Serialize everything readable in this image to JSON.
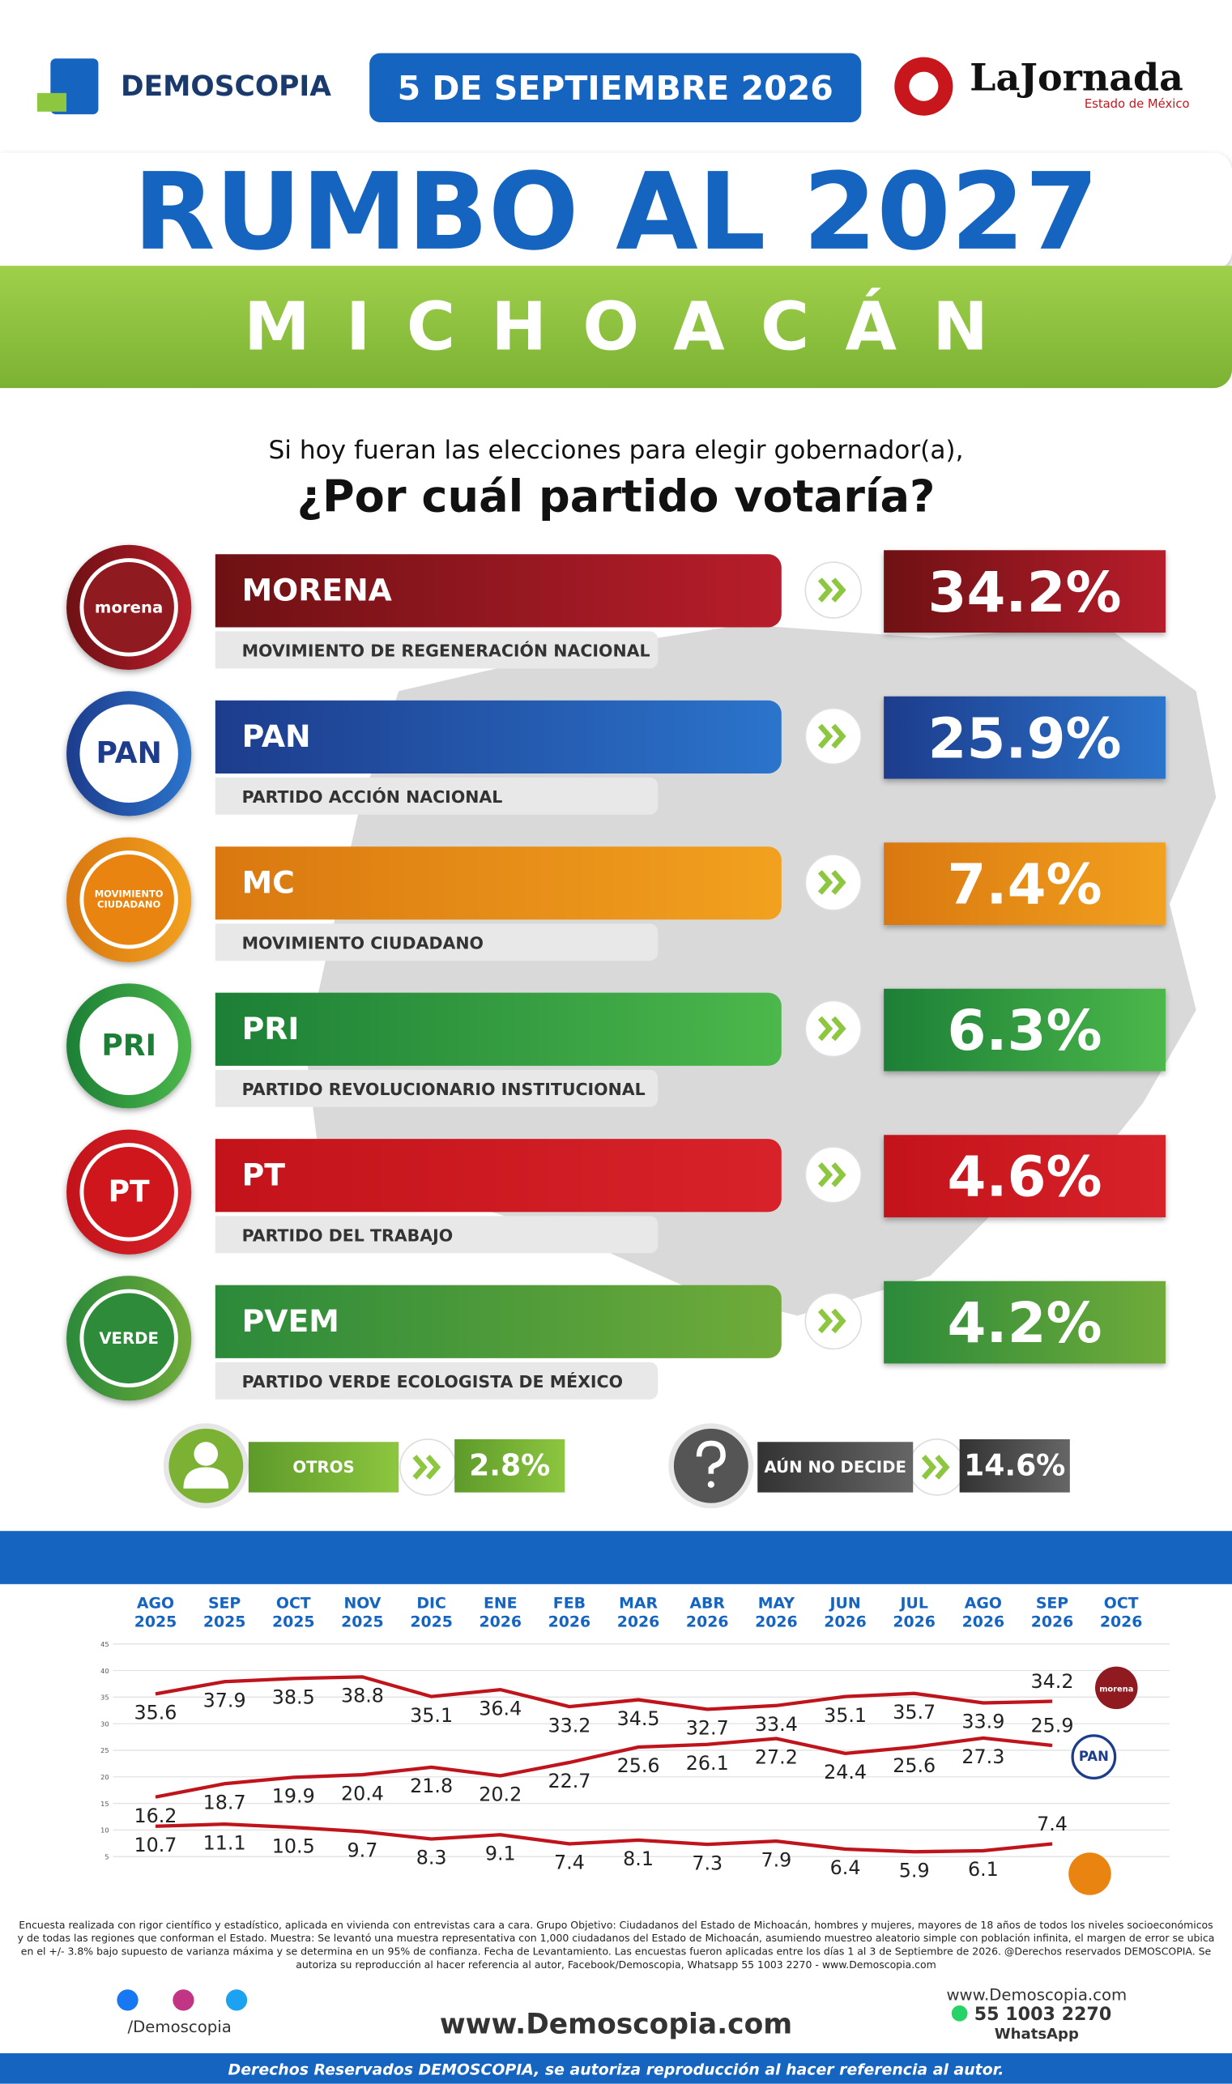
{
  "header": {
    "brand": "DEMOSCOPIA",
    "date": "5 DE SEPTIEMBRE 2026",
    "partner": "LaJornada",
    "partner_sub": "Estado de México",
    "title": "RUMBO AL 2027",
    "state": "MICHOACÁN"
  },
  "question": {
    "line1": "Si hoy fueran las elecciones para elegir gobernador(a),",
    "line2": "¿Por cuál partido votaría?"
  },
  "parties": [
    {
      "logo": "morena",
      "name": "MORENA",
      "full_name": "MOVIMIENTO DE REGENERACIÓN NACIONAL",
      "percent": "34.2%",
      "colors": [
        "#6e1114",
        "#b81d2b"
      ],
      "logo_color": "#8f1a1f"
    },
    {
      "logo": "PAN",
      "name": "PAN",
      "full_name": "PARTIDO ACCIÓN NACIONAL",
      "percent": "25.9%",
      "colors": [
        "#1d3c8c",
        "#2b74cc"
      ],
      "logo_color": "#ffffff"
    },
    {
      "logo": "MOVIMIENTO CIUDADANO",
      "name": "MC",
      "full_name": "MOVIMIENTO CIUDADANO",
      "percent": "7.4%",
      "colors": [
        "#d97810",
        "#f2a11f"
      ],
      "logo_color": "#e8840f"
    },
    {
      "logo": "PRI",
      "name": "PRI",
      "full_name": "PARTIDO REVOLUCIONARIO INSTITUCIONAL",
      "percent": "6.3%",
      "colors": [
        "#1c7f36",
        "#4cb84b"
      ],
      "logo_color": "#ffffff"
    },
    {
      "logo": "PT",
      "name": "PT",
      "full_name": "PARTIDO DEL TRABAJO",
      "percent": "4.6%",
      "colors": [
        "#c3131a",
        "#d8222a"
      ],
      "logo_color": "#d0161d"
    },
    {
      "logo": "VERDE",
      "name": "PVEM",
      "full_name": "PARTIDO VERDE ECOLOGISTA DE MÉXICO",
      "percent": "4.2%",
      "colors": [
        "#2b8a3a",
        "#70ab3a"
      ],
      "logo_color": "#2e8b3a"
    }
  ],
  "others": {
    "label": "OTROS",
    "percent": "2.8%"
  },
  "undecided": {
    "label": "AÚN NO DECIDE",
    "percent": "14.6%"
  },
  "chart_data": {
    "type": "line",
    "categories": [
      "AGO 2025",
      "SEP 2025",
      "OCT 2025",
      "NOV 2025",
      "DIC 2025",
      "ENE 2026",
      "FEB 2026",
      "MAR 2026",
      "ABR 2026",
      "MAY 2026",
      "JUN 2026",
      "JUL 2026",
      "AGO 2026",
      "SEP 2026",
      "OCT 2026"
    ],
    "series": [
      {
        "name": "morena",
        "color": "#c0141c",
        "values": [
          35.6,
          37.9,
          38.5,
          38.8,
          35.1,
          36.4,
          33.2,
          34.5,
          32.7,
          33.4,
          35.1,
          35.7,
          33.9,
          34.2,
          null
        ]
      },
      {
        "name": "PAN",
        "color": "#c0141c",
        "values": [
          16.2,
          18.7,
          19.9,
          20.4,
          21.8,
          20.2,
          22.7,
          25.6,
          26.1,
          27.2,
          24.4,
          25.6,
          27.3,
          25.9,
          null
        ]
      },
      {
        "color": "#c0141c",
        "values": [
          10.7,
          11.1,
          10.5,
          9.7,
          8.3,
          9.1,
          7.4,
          8.1,
          7.3,
          7.9,
          6.4,
          5.9,
          6.1,
          7.4,
          null
        ]
      }
    ],
    "ylim": [
      0,
      45
    ],
    "yticks": [
      5,
      10,
      15,
      20,
      25,
      30,
      35,
      40,
      45
    ],
    "grid": true
  },
  "footer": {
    "note": "Encuesta realizada con rigor científico y estadístico, aplicada en vivienda con entrevistas cara a cara. Grupo Objetivo: Ciudadanos del Estado de Michoacán, hombres y mujeres, mayores de 18 años de todos los niveles socioeconómicos y de todas las regiones que conforman el Estado. Muestra: Se levantó una muestra representativa con 1,000 ciudadanos del Estado de Michoacán, asumiendo muestreo aleatorio simple con población infinita, el margen de error se ubica en el +/- 3.8% bajo supuesto de varianza máxima y se determina en un 95% de confianza. Fecha de Levantamiento. Las encuestas fueron aplicadas entre los días 1 al 3 de Septiembre de 2026. @Derechos reservados DEMOSCOPIA. Se autoriza su reproducción al hacer referencia al autor, Facebook/Demoscopia, Whatsapp 55 1003 2270 - www.Demoscopia.com",
    "social": "/Demoscopia",
    "website": "www.Demoscopia.com",
    "contact_site": "www.Demoscopia.com",
    "phone": "55 1003 2270",
    "phone_label": "WhatsApp",
    "rights": "Derechos Reservados DEMOSCOPIA, se autoriza reproducción al hacer referencia al autor."
  }
}
